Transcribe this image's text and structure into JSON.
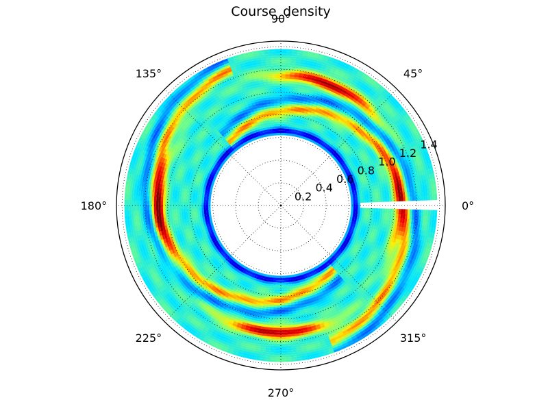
{
  "chart_data": {
    "type": "heatmap",
    "projection": "polar",
    "title": "Course_density",
    "angle_tick_labels": [
      "0°",
      "45°",
      "90°",
      "135°",
      "180°",
      "225°",
      "270°",
      "315°"
    ],
    "angle_ticks_deg": [
      0,
      45,
      90,
      135,
      180,
      225,
      270,
      315
    ],
    "radial_tick_labels": [
      "0.2",
      "0.4",
      "0.6",
      "0.8",
      "1.0",
      "1.2",
      "1.4"
    ],
    "radial_ticks": [
      0.2,
      0.4,
      0.6,
      0.8,
      1.0,
      1.2,
      1.4
    ],
    "rlim": [
      0,
      1.45
    ],
    "data_radius_range": [
      0.62,
      1.38
    ],
    "grid": true,
    "colormap": "jet",
    "colormap_stops": [
      "#00007f",
      "#0000ff",
      "#0080ff",
      "#00e5ff",
      "#7cff79",
      "#ffee00",
      "#ff5a00",
      "#ee0000",
      "#7f0000"
    ],
    "density_bands": [
      {
        "name_hint": "spiral-arm-a",
        "r_start": 1.28,
        "r_end": 0.72,
        "theta_start_deg": 110,
        "theta_end_deg": 310,
        "peak": 1.0
      },
      {
        "name_hint": "spiral-arm-b",
        "r_start": 1.28,
        "r_end": 0.72,
        "theta_start_deg": 290,
        "theta_end_deg": 490,
        "peak": 0.85
      }
    ],
    "peaks": [
      {
        "theta_deg": 68,
        "r": 1.15,
        "value": 1.0
      },
      {
        "theta_deg": 268,
        "r": 1.12,
        "value": 1.0
      },
      {
        "theta_deg": 180,
        "r": 1.08,
        "value": 0.7
      },
      {
        "theta_deg": 0,
        "r": 1.05,
        "value": 0.6
      }
    ],
    "gap": {
      "theta_deg": 0,
      "r_from": 0.7,
      "r_to": 1.45
    }
  }
}
